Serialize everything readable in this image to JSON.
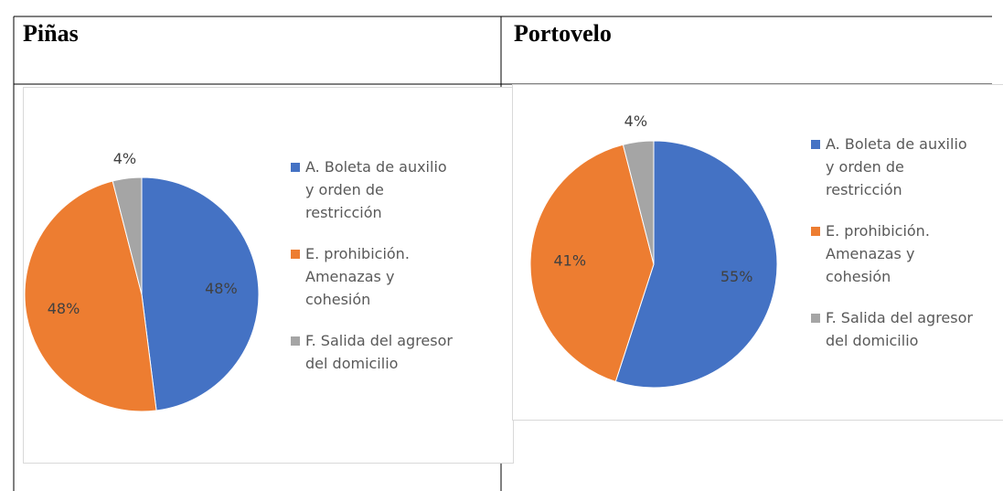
{
  "table": {
    "headers": [
      "Piñas",
      "Portovelo"
    ]
  },
  "chart_data": [
    {
      "type": "pie",
      "categories": [
        "A. Boleta de auxilio y orden de restricción",
        "E. prohibición. Amenazas y cohesión",
        "F. Salida del agresor del domicilio"
      ],
      "values": [
        48,
        48,
        4
      ],
      "value_labels": [
        "48%",
        "48%",
        "4%"
      ],
      "colors": [
        "#4472c4",
        "#ed7d31",
        "#a5a5a5"
      ]
    },
    {
      "type": "pie",
      "categories": [
        "A. Boleta de auxilio y orden de restricción",
        "E. prohibición. Amenazas y cohesión",
        "F. Salida del agresor del domicilio"
      ],
      "values": [
        55,
        41,
        4
      ],
      "value_labels": [
        "55%",
        "41%",
        "4%"
      ],
      "colors": [
        "#4472c4",
        "#ed7d31",
        "#a5a5a5"
      ]
    }
  ]
}
